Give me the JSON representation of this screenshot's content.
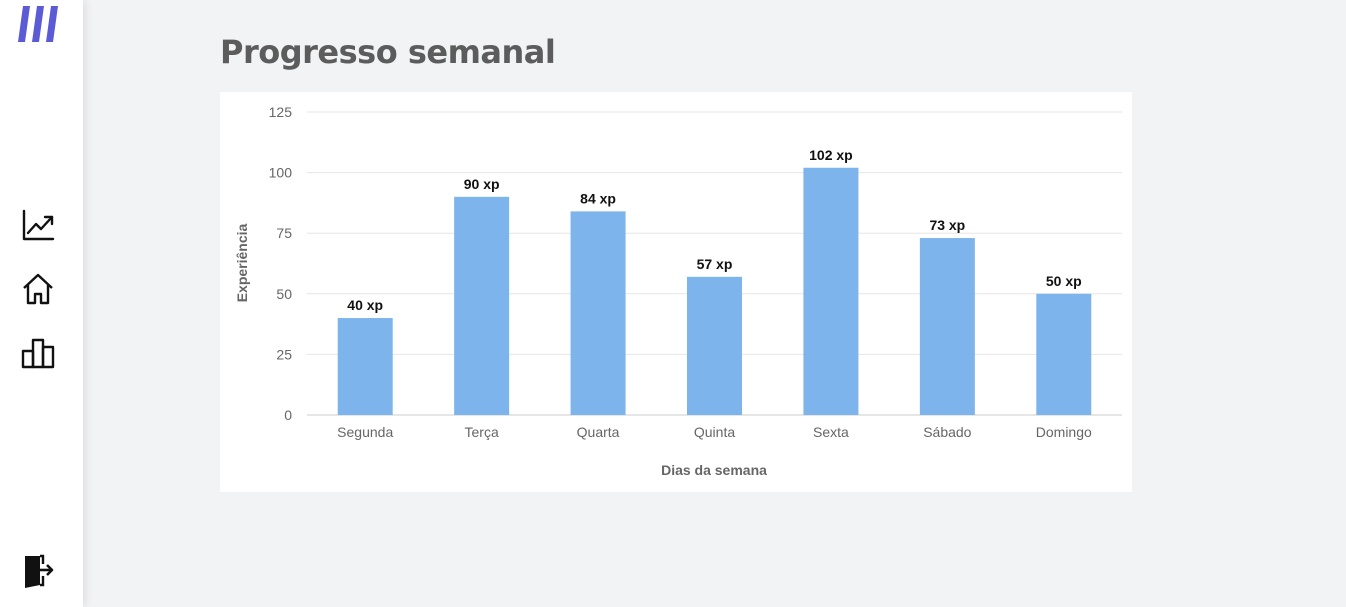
{
  "sidebar": {
    "logo": "brand-logo",
    "items": [
      {
        "name": "nav-progress",
        "icon": "trend-chart-icon"
      },
      {
        "name": "nav-home",
        "icon": "home-icon"
      },
      {
        "name": "nav-ranking",
        "icon": "bar-ranking-icon"
      }
    ],
    "logout": {
      "icon": "logout-door-icon"
    }
  },
  "main": {
    "title": "Progresso semanal"
  },
  "colors": {
    "bar": "#7eb4ec",
    "grid": "#e6e6e6",
    "logo": "#5b5bd6",
    "background": "#f2f3f5"
  },
  "chart_data": {
    "type": "bar",
    "categories": [
      "Segunda",
      "Terça",
      "Quarta",
      "Quinta",
      "Sexta",
      "Sábado",
      "Domingo"
    ],
    "values": [
      40,
      90,
      84,
      57,
      102,
      73,
      50
    ],
    "data_labels": [
      "40 xp",
      "90 xp",
      "84 xp",
      "57 xp",
      "102 xp",
      "73 xp",
      "50 xp"
    ],
    "yticks": [
      "0",
      "25",
      "50",
      "75",
      "100",
      "125"
    ],
    "xlabel": "Dias da semana",
    "ylabel": "Experiência",
    "ylim": [
      0,
      125
    ],
    "grid": true
  }
}
